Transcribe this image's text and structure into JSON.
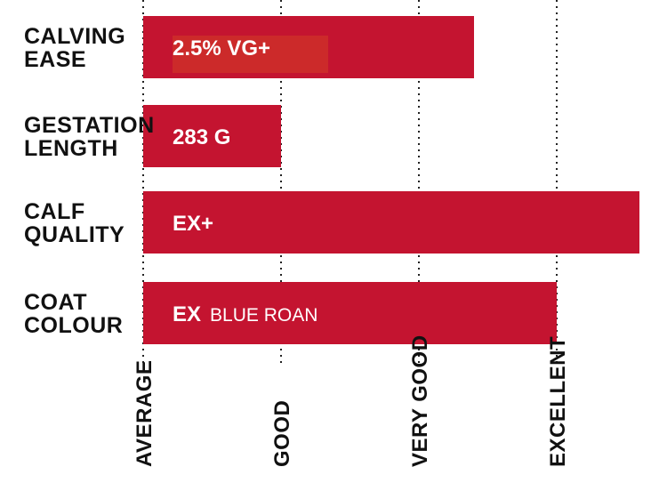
{
  "chart_data": {
    "type": "bar",
    "orientation": "horizontal",
    "title": "",
    "xlabel": "",
    "ylabel": "",
    "x_ticks": [
      "AVERAGE",
      "GOOD",
      "VERY GOOD",
      "EXCELLENT"
    ],
    "xlim": [
      0,
      3.6
    ],
    "grid": true,
    "legend": "none",
    "bar_color": "#c41430",
    "highlight_color": "#cc2a2a",
    "categories": [
      [
        "CALVING",
        "EASE"
      ],
      [
        "GESTATION",
        "LENGTH"
      ],
      [
        "CALF",
        "QUALITY"
      ],
      [
        "COAT",
        "COLOUR"
      ]
    ],
    "values": [
      2.4,
      1.0,
      3.6,
      3.0
    ],
    "bar_labels": [
      {
        "value": "2.5% VG+",
        "suffix": ""
      },
      {
        "value": "283 G",
        "suffix": ""
      },
      {
        "value": "EX+",
        "suffix": ""
      },
      {
        "value": "EX",
        "suffix": "BLUE ROAN"
      }
    ]
  }
}
